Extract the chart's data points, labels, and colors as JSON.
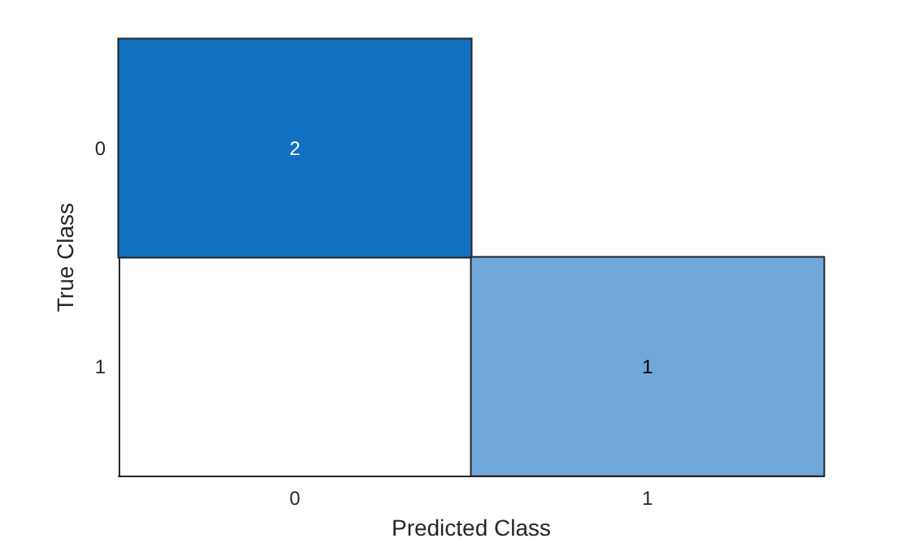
{
  "chart_data": {
    "type": "heatmap",
    "xlabel": "Predicted Class",
    "ylabel": "True Class",
    "categories": [
      "0",
      "1"
    ],
    "y_categories": [
      "0",
      "1"
    ],
    "cells": [
      [
        2,
        null
      ],
      [
        null,
        1
      ]
    ],
    "colors": [
      "#6fa8d9",
      "#1170bf"
    ],
    "data_labels": true
  }
}
